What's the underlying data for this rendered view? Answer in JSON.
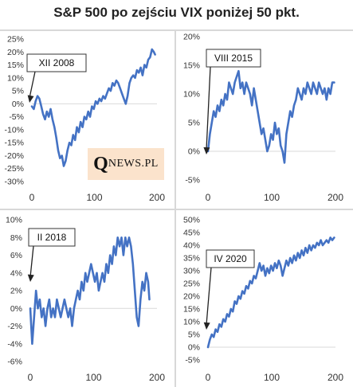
{
  "title": "S&P 500 po zejściu VIX poniżej 50 pkt.",
  "logo": {
    "big": "Q",
    "rest": "NEWS.PL"
  },
  "colors": {
    "series": "#4472c4",
    "separator": "#d8d8d8",
    "logo_bg": "#fbe3cc"
  },
  "chart_data": [
    {
      "type": "line",
      "annotation": "XII 2008",
      "xlim": [
        0,
        200
      ],
      "xticks": [
        0,
        100,
        200
      ],
      "ylim": [
        -30,
        25
      ],
      "yticks": [
        "25%",
        "20%",
        "15%",
        "10%",
        "5%",
        "0%",
        "-5%",
        "-10%",
        "-15%",
        "-20%",
        "-25%",
        "-30%"
      ],
      "ytick_values": [
        25,
        20,
        15,
        10,
        5,
        0,
        -5,
        -10,
        -15,
        -20,
        -25,
        -30
      ],
      "series": [
        {
          "values": [
            [
              0,
              -1
            ],
            [
              3,
              -2
            ],
            [
              6,
              1
            ],
            [
              9,
              3
            ],
            [
              12,
              2
            ],
            [
              15,
              -1
            ],
            [
              18,
              -4
            ],
            [
              21,
              -6
            ],
            [
              24,
              -3
            ],
            [
              27,
              -5
            ],
            [
              30,
              -2
            ],
            [
              33,
              -6
            ],
            [
              36,
              -9
            ],
            [
              39,
              -13
            ],
            [
              42,
              -18
            ],
            [
              45,
              -21
            ],
            [
              48,
              -20
            ],
            [
              51,
              -24
            ],
            [
              54,
              -22
            ],
            [
              57,
              -18
            ],
            [
              60,
              -15
            ],
            [
              63,
              -16
            ],
            [
              66,
              -12
            ],
            [
              69,
              -14
            ],
            [
              72,
              -9
            ],
            [
              75,
              -11
            ],
            [
              78,
              -7
            ],
            [
              81,
              -9
            ],
            [
              84,
              -5
            ],
            [
              87,
              -6
            ],
            [
              90,
              -3
            ],
            [
              93,
              -5
            ],
            [
              96,
              -1
            ],
            [
              99,
              -2
            ],
            [
              102,
              1
            ],
            [
              105,
              0
            ],
            [
              108,
              2
            ],
            [
              111,
              1
            ],
            [
              114,
              3
            ],
            [
              117,
              2
            ],
            [
              120,
              4
            ],
            [
              123,
              6
            ],
            [
              126,
              5
            ],
            [
              129,
              8
            ],
            [
              132,
              7
            ],
            [
              135,
              9
            ],
            [
              138,
              8
            ],
            [
              141,
              6
            ],
            [
              144,
              4
            ],
            [
              147,
              2
            ],
            [
              150,
              0
            ],
            [
              153,
              3
            ],
            [
              156,
              8
            ],
            [
              159,
              10
            ],
            [
              162,
              11
            ],
            [
              165,
              10
            ],
            [
              168,
              13
            ],
            [
              171,
              12
            ],
            [
              174,
              14
            ],
            [
              177,
              11
            ],
            [
              180,
              15
            ],
            [
              183,
              14
            ],
            [
              186,
              17
            ],
            [
              189,
              18
            ],
            [
              192,
              21
            ],
            [
              195,
              20
            ],
            [
              197,
              19
            ]
          ]
        }
      ]
    },
    {
      "type": "line",
      "annotation": "VIII 2015",
      "xlim": [
        0,
        200
      ],
      "xticks": [
        0,
        100,
        200
      ],
      "ylim": [
        -5,
        20
      ],
      "yticks": [
        "20%",
        "15%",
        "10%",
        "5%",
        "0%",
        "-5%"
      ],
      "ytick_values": [
        20,
        15,
        10,
        5,
        0,
        -5
      ],
      "series": [
        {
          "values": [
            [
              0,
              0
            ],
            [
              3,
              3
            ],
            [
              6,
              5
            ],
            [
              9,
              7
            ],
            [
              12,
              6
            ],
            [
              15,
              8
            ],
            [
              18,
              7
            ],
            [
              21,
              9
            ],
            [
              24,
              8
            ],
            [
              27,
              10
            ],
            [
              30,
              9
            ],
            [
              33,
              12
            ],
            [
              36,
              11
            ],
            [
              39,
              10
            ],
            [
              42,
              12
            ],
            [
              45,
              13
            ],
            [
              48,
              14
            ],
            [
              51,
              11
            ],
            [
              54,
              12
            ],
            [
              57,
              10
            ],
            [
              60,
              12
            ],
            [
              63,
              11
            ],
            [
              66,
              10
            ],
            [
              69,
              8
            ],
            [
              72,
              11
            ],
            [
              75,
              9
            ],
            [
              78,
              7
            ],
            [
              81,
              5
            ],
            [
              84,
              3
            ],
            [
              87,
              4
            ],
            [
              90,
              2
            ],
            [
              93,
              0
            ],
            [
              96,
              1
            ],
            [
              99,
              3
            ],
            [
              102,
              2
            ],
            [
              105,
              5
            ],
            [
              108,
              3
            ],
            [
              111,
              4
            ],
            [
              114,
              1
            ],
            [
              117,
              0
            ],
            [
              120,
              -2
            ],
            [
              123,
              3
            ],
            [
              126,
              5
            ],
            [
              129,
              7
            ],
            [
              132,
              6
            ],
            [
              135,
              8
            ],
            [
              138,
              9
            ],
            [
              141,
              11
            ],
            [
              144,
              10
            ],
            [
              147,
              9
            ],
            [
              150,
              11
            ],
            [
              153,
              10
            ],
            [
              156,
              12
            ],
            [
              159,
              11
            ],
            [
              162,
              10
            ],
            [
              165,
              12
            ],
            [
              168,
              11
            ],
            [
              171,
              10
            ],
            [
              174,
              12
            ],
            [
              177,
              11
            ],
            [
              180,
              10
            ],
            [
              183,
              11
            ],
            [
              186,
              9
            ],
            [
              189,
              11
            ],
            [
              192,
              10
            ],
            [
              195,
              12
            ],
            [
              198,
              12
            ]
          ]
        }
      ]
    },
    {
      "type": "line",
      "annotation": "II 2018",
      "xlim": [
        0,
        200
      ],
      "xticks": [
        0,
        100,
        200
      ],
      "ylim": [
        -6,
        10
      ],
      "yticks": [
        "10%",
        "8%",
        "6%",
        "4%",
        "2%",
        "0%",
        "-2%",
        "-4%",
        "-6%"
      ],
      "ytick_values": [
        10,
        8,
        6,
        4,
        2,
        0,
        -2,
        -4,
        -6
      ],
      "series": [
        {
          "values": [
            [
              0,
              0
            ],
            [
              3,
              -4
            ],
            [
              6,
              -1
            ],
            [
              9,
              2
            ],
            [
              12,
              0
            ],
            [
              15,
              1
            ],
            [
              18,
              -1
            ],
            [
              21,
              0
            ],
            [
              24,
              -2
            ],
            [
              27,
              0
            ],
            [
              30,
              1
            ],
            [
              33,
              -1
            ],
            [
              36,
              0
            ],
            [
              39,
              -1
            ],
            [
              42,
              1
            ],
            [
              45,
              0
            ],
            [
              48,
              -1
            ],
            [
              51,
              0
            ],
            [
              54,
              1
            ],
            [
              57,
              0
            ],
            [
              60,
              -1
            ],
            [
              63,
              0
            ],
            [
              66,
              -2
            ],
            [
              69,
              0
            ],
            [
              72,
              1
            ],
            [
              75,
              2
            ],
            [
              78,
              1
            ],
            [
              81,
              3
            ],
            [
              84,
              2
            ],
            [
              87,
              4
            ],
            [
              90,
              3
            ],
            [
              93,
              4
            ],
            [
              96,
              5
            ],
            [
              99,
              4
            ],
            [
              102,
              3
            ],
            [
              105,
              4
            ],
            [
              108,
              2
            ],
            [
              111,
              3
            ],
            [
              114,
              4
            ],
            [
              117,
              3
            ],
            [
              120,
              5
            ],
            [
              123,
              4
            ],
            [
              126,
              6
            ],
            [
              129,
              5
            ],
            [
              132,
              7
            ],
            [
              135,
              6
            ],
            [
              138,
              8
            ],
            [
              141,
              7
            ],
            [
              144,
              8
            ],
            [
              147,
              6
            ],
            [
              150,
              8
            ],
            [
              153,
              7
            ],
            [
              156,
              8
            ],
            [
              159,
              7
            ],
            [
              162,
              5
            ],
            [
              165,
              2
            ],
            [
              168,
              -1
            ],
            [
              171,
              -2
            ],
            [
              174,
              1
            ],
            [
              177,
              3
            ],
            [
              180,
              2
            ],
            [
              183,
              4
            ],
            [
              186,
              3
            ],
            [
              188,
              1
            ]
          ]
        }
      ]
    },
    {
      "type": "line",
      "annotation": "IV 2020",
      "xlim": [
        0,
        200
      ],
      "xticks": [
        0,
        100,
        200
      ],
      "ylim": [
        -5,
        50
      ],
      "yticks": [
        "50%",
        "45%",
        "40%",
        "35%",
        "30%",
        "25%",
        "20%",
        "15%",
        "10%",
        "5%",
        "0%",
        "-5%"
      ],
      "ytick_values": [
        50,
        45,
        40,
        35,
        30,
        25,
        20,
        15,
        10,
        5,
        0,
        -5
      ],
      "series": [
        {
          "values": [
            [
              0,
              0
            ],
            [
              3,
              3
            ],
            [
              6,
              5
            ],
            [
              9,
              4
            ],
            [
              12,
              7
            ],
            [
              15,
              6
            ],
            [
              18,
              9
            ],
            [
              21,
              8
            ],
            [
              24,
              11
            ],
            [
              27,
              10
            ],
            [
              30,
              13
            ],
            [
              33,
              12
            ],
            [
              36,
              15
            ],
            [
              39,
              14
            ],
            [
              42,
              18
            ],
            [
              45,
              17
            ],
            [
              48,
              20
            ],
            [
              51,
              19
            ],
            [
              54,
              22
            ],
            [
              57,
              21
            ],
            [
              60,
              24
            ],
            [
              63,
              23
            ],
            [
              66,
              26
            ],
            [
              69,
              25
            ],
            [
              72,
              28
            ],
            [
              75,
              27
            ],
            [
              78,
              30
            ],
            [
              81,
              33
            ],
            [
              84,
              30
            ],
            [
              87,
              32
            ],
            [
              90,
              28
            ],
            [
              93,
              31
            ],
            [
              96,
              29
            ],
            [
              99,
              32
            ],
            [
              102,
              30
            ],
            [
              105,
              33
            ],
            [
              108,
              31
            ],
            [
              111,
              34
            ],
            [
              114,
              32
            ],
            [
              117,
              28
            ],
            [
              120,
              31
            ],
            [
              123,
              34
            ],
            [
              126,
              32
            ],
            [
              129,
              35
            ],
            [
              132,
              33
            ],
            [
              135,
              36
            ],
            [
              138,
              34
            ],
            [
              141,
              37
            ],
            [
              144,
              35
            ],
            [
              147,
              38
            ],
            [
              150,
              36
            ],
            [
              153,
              39
            ],
            [
              156,
              37
            ],
            [
              159,
              40
            ],
            [
              162,
              38
            ],
            [
              165,
              40
            ],
            [
              168,
              39
            ],
            [
              171,
              41
            ],
            [
              174,
              40
            ],
            [
              177,
              42
            ],
            [
              180,
              40
            ],
            [
              183,
              41
            ],
            [
              186,
              42
            ],
            [
              189,
              41
            ],
            [
              192,
              43
            ],
            [
              195,
              42
            ],
            [
              198,
              43
            ]
          ]
        }
      ]
    }
  ]
}
